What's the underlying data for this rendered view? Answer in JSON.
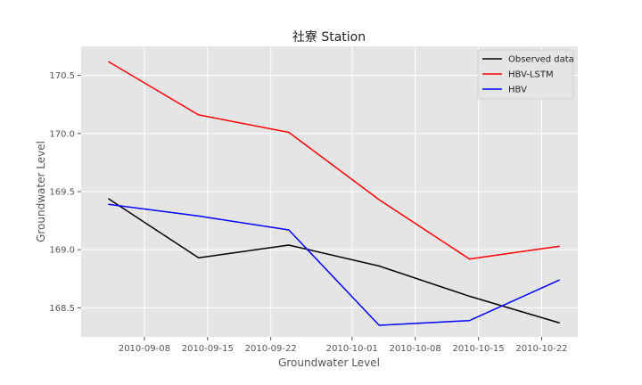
{
  "chart_data": {
    "type": "line",
    "title": "社寮 Station",
    "xlabel": "Groundwater Level",
    "ylabel": "Groundwater Level",
    "x": [
      "2010-09-04",
      "2010-09-14",
      "2010-09-24",
      "2010-10-04",
      "2010-10-14",
      "2010-10-24"
    ],
    "xlim": [
      "2010-09-01",
      "2010-10-26"
    ],
    "ylim": [
      168.25,
      170.75
    ],
    "x_ticks": [
      "2010-09-08",
      "2010-09-15",
      "2010-09-22",
      "2010-10-01",
      "2010-10-08",
      "2010-10-15",
      "2010-10-22"
    ],
    "y_ticks": [
      "168.5",
      "169.0",
      "169.5",
      "170.0",
      "170.5"
    ],
    "grid": true,
    "legend_position": "top-right",
    "series": [
      {
        "name": "Observed data",
        "color": "#000000",
        "values": [
          169.44,
          168.93,
          169.04,
          168.86,
          168.6,
          168.37
        ]
      },
      {
        "name": "HBV-LSTM",
        "color": "#ff0000",
        "values": [
          170.62,
          170.16,
          170.01,
          169.43,
          168.92,
          169.03
        ]
      },
      {
        "name": "HBV",
        "color": "#0000ff",
        "values": [
          169.39,
          169.29,
          169.17,
          168.35,
          168.39,
          168.74
        ]
      }
    ]
  }
}
